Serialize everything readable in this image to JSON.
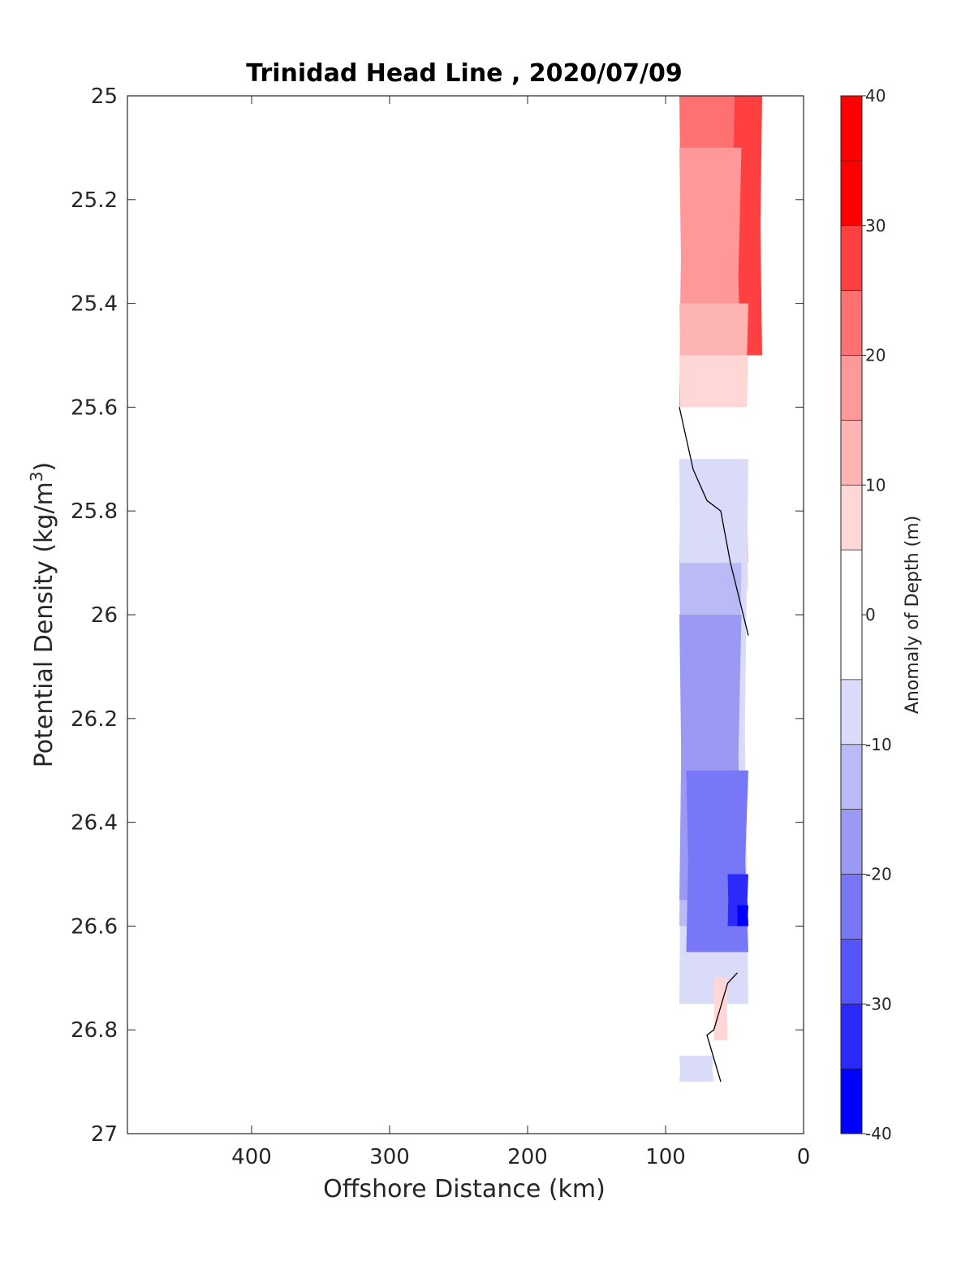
{
  "chart_data": {
    "type": "heatmap",
    "title": "Trinidad Head Line , 2020/07/09",
    "xlabel": "Offshore Distance (km)",
    "ylabel": "Potential Density (kg/m",
    "ylabel_superscript": "3",
    "ylabel_suffix": ")",
    "colorbar_label": "Anomaly of Depth (m)",
    "xlim": [
      490,
      0
    ],
    "ylim": [
      25,
      27
    ],
    "x_reversed": true,
    "y_reversed": true,
    "x_ticks": [
      400,
      300,
      200,
      100,
      0
    ],
    "y_ticks": [
      25,
      25.2,
      25.4,
      25.6,
      25.8,
      26,
      26.2,
      26.4,
      26.6,
      26.8,
      27
    ],
    "y_tick_labels": [
      "25",
      "25.2",
      "25.4",
      "25.6",
      "25.8",
      "26",
      "26.2",
      "26.4",
      "26.6",
      "26.8",
      "27"
    ],
    "colorbar_ticks": [
      40,
      30,
      20,
      10,
      0,
      -10,
      -20,
      -30,
      -40
    ],
    "levels": [
      -40,
      -35,
      -30,
      -25,
      -20,
      -15,
      -10,
      -5,
      5,
      10,
      15,
      20,
      25,
      30,
      35,
      40
    ],
    "colors": {
      "30_to_40": "#ff0000",
      "25_to_30": "#ff4040",
      "20_to_25": "#ff7070",
      "15_to_20": "#ff9999",
      "10_to_15": "#ffb4b4",
      "5_to_10": "#ffd7d7",
      "-5_to_5": "#ffffff",
      "-10_to_-5": "#dadaf9",
      "-15_to_-10": "#babaf6",
      "-20_to_-15": "#9a9af4",
      "-25_to_-20": "#7777f8",
      "-30_to_-25": "#5555fa",
      "-35_to_-30": "#2a2afc",
      "-40_to_-35": "#0000ff"
    },
    "data_extent": {
      "x_min": 30,
      "x_max": 90,
      "y_min": 25,
      "y_max": 26.9
    },
    "regions": [
      {
        "anomaly": "25 to 30",
        "x_range": [
          30,
          55
        ],
        "y_range": [
          25,
          25.5
        ]
      },
      {
        "anomaly": "20 to 25",
        "x_range": [
          50,
          90
        ],
        "y_range": [
          25,
          25.6
        ]
      },
      {
        "anomaly": "15 to 20",
        "x_range": [
          45,
          90
        ],
        "y_range": [
          25.1,
          25.6
        ]
      },
      {
        "anomaly": "10 to 15",
        "x_range": [
          40,
          90
        ],
        "y_range": [
          25.4,
          25.9
        ]
      },
      {
        "anomaly": "5 to 10",
        "x_range": [
          40,
          90
        ],
        "y_range": [
          25.5,
          25.95
        ]
      },
      {
        "anomaly": "-5 to 5",
        "x_range": [
          40,
          90
        ],
        "y_range": [
          25.6,
          26.05
        ]
      },
      {
        "anomaly": "-10 to -5",
        "x_range": [
          40,
          90
        ],
        "y_range": [
          25.7,
          26.75
        ]
      },
      {
        "anomaly": "-15 to -10",
        "x_range": [
          45,
          90
        ],
        "y_range": [
          25.9,
          26.6
        ]
      },
      {
        "anomaly": "-20 to -15",
        "x_range": [
          45,
          90
        ],
        "y_range": [
          26.0,
          26.55
        ]
      },
      {
        "anomaly": "-25 to -20",
        "x_range": [
          40,
          85
        ],
        "y_range": [
          26.3,
          26.65
        ]
      },
      {
        "anomaly": "-35 to -30",
        "x_range": [
          40,
          55
        ],
        "y_range": [
          26.5,
          26.6
        ]
      },
      {
        "anomaly": "-40 to -35",
        "x_range": [
          40,
          48
        ],
        "y_range": [
          26.56,
          26.6
        ]
      },
      {
        "anomaly": "5 to 10",
        "x_range": [
          55,
          65
        ],
        "y_range": [
          26.7,
          26.82
        ]
      },
      {
        "anomaly": "-10 to -5",
        "x_range": [
          65,
          90
        ],
        "y_range": [
          26.85,
          26.9
        ]
      }
    ],
    "zero_contours": [
      {
        "points": [
          [
            90,
            25.6
          ],
          [
            80,
            25.72
          ],
          [
            70,
            25.78
          ],
          [
            60,
            25.8
          ],
          [
            53,
            25.9
          ],
          [
            40,
            26.04
          ]
        ]
      },
      {
        "points": [
          [
            48,
            26.69
          ],
          [
            55,
            26.71
          ],
          [
            65,
            26.8
          ],
          [
            70,
            26.81
          ],
          [
            60,
            26.9
          ]
        ]
      }
    ]
  }
}
